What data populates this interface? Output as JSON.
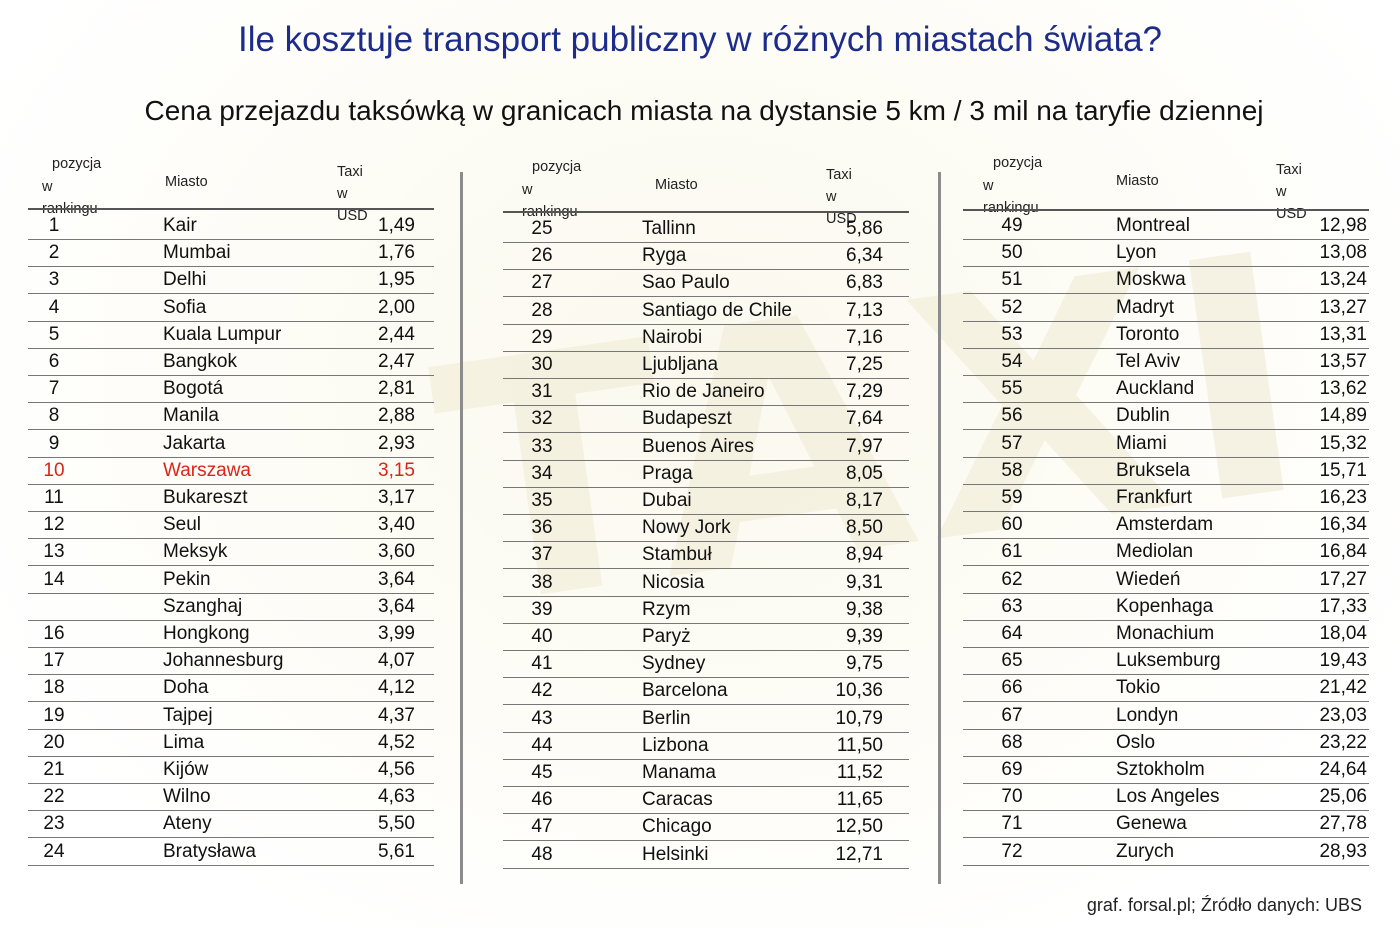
{
  "title": "Ile kosztuje transport publiczny w różnych miastach świata?",
  "subtitle": "Cena przejazdu taksówką w granicach miasta na dystansie 5 km / 3 mil na taryfie dziennej",
  "footer": "graf. forsal.pl; Źródło danych: UBS",
  "watermark": "TAXI",
  "headers": {
    "position_line1": "pozycja",
    "position_line2": "w rankingu",
    "city": "Miasto",
    "value": "Taxi w USD"
  },
  "colors": {
    "title": "#1d2c8a",
    "highlight": "#d8261a"
  },
  "chart_data": {
    "type": "table",
    "title": "Ile kosztuje transport publiczny w różnych miastach świata?",
    "subtitle": "Cena przejazdu taksówką w granicach miasta na dystansie 5 km / 3 mil na taryfie dziennej",
    "columns": [
      "pozycja w rankingu",
      "Miasto",
      "Taxi w USD"
    ],
    "highlighted_city": "Warszawa",
    "rows": [
      {
        "pos": "1",
        "city": "Kair",
        "value": "1,49"
      },
      {
        "pos": "2",
        "city": "Mumbai",
        "value": "1,76"
      },
      {
        "pos": "3",
        "city": "Delhi",
        "value": "1,95"
      },
      {
        "pos": "4",
        "city": "Sofia",
        "value": "2,00"
      },
      {
        "pos": "5",
        "city": "Kuala Lumpur",
        "value": "2,44"
      },
      {
        "pos": "6",
        "city": "Bangkok",
        "value": "2,47"
      },
      {
        "pos": "7",
        "city": "Bogotá",
        "value": "2,81"
      },
      {
        "pos": "8",
        "city": "Manila",
        "value": "2,88"
      },
      {
        "pos": "9",
        "city": "Jakarta",
        "value": "2,93"
      },
      {
        "pos": "10",
        "city": "Warszawa",
        "value": "3,15"
      },
      {
        "pos": "11",
        "city": "Bukareszt",
        "value": "3,17"
      },
      {
        "pos": "12",
        "city": "Seul",
        "value": "3,40"
      },
      {
        "pos": "13",
        "city": "Meksyk",
        "value": "3,60"
      },
      {
        "pos": "14",
        "city": "Pekin",
        "value": "3,64"
      },
      {
        "pos": "",
        "city": "Szanghaj",
        "value": "3,64"
      },
      {
        "pos": "16",
        "city": "Hongkong",
        "value": "3,99"
      },
      {
        "pos": "17",
        "city": "Johannesburg",
        "value": "4,07"
      },
      {
        "pos": "18",
        "city": "Doha",
        "value": "4,12"
      },
      {
        "pos": "19",
        "city": "Tajpej",
        "value": "4,37"
      },
      {
        "pos": "20",
        "city": "Lima",
        "value": "4,52"
      },
      {
        "pos": "21",
        "city": "Kijów",
        "value": "4,56"
      },
      {
        "pos": "22",
        "city": "Wilno",
        "value": "4,63"
      },
      {
        "pos": "23",
        "city": "Ateny",
        "value": "5,50"
      },
      {
        "pos": "24",
        "city": "Bratysława",
        "value": "5,61"
      },
      {
        "pos": "25",
        "city": "Tallinn",
        "value": "5,86"
      },
      {
        "pos": "26",
        "city": "Ryga",
        "value": "6,34"
      },
      {
        "pos": "27",
        "city": "Sao Paulo",
        "value": "6,83"
      },
      {
        "pos": "28",
        "city": "Santiago de Chile",
        "value": "7,13"
      },
      {
        "pos": "29",
        "city": "Nairobi",
        "value": "7,16"
      },
      {
        "pos": "30",
        "city": "Ljubljana",
        "value": "7,25"
      },
      {
        "pos": "31",
        "city": "Rio de Janeiro",
        "value": "7,29"
      },
      {
        "pos": "32",
        "city": "Budapeszt",
        "value": "7,64"
      },
      {
        "pos": "33",
        "city": "Buenos Aires",
        "value": "7,97"
      },
      {
        "pos": "34",
        "city": "Praga",
        "value": "8,05"
      },
      {
        "pos": "35",
        "city": "Dubai",
        "value": "8,17"
      },
      {
        "pos": "36",
        "city": "Nowy Jork",
        "value": "8,50"
      },
      {
        "pos": "37",
        "city": "Stambuł",
        "value": "8,94"
      },
      {
        "pos": "38",
        "city": "Nicosia",
        "value": "9,31"
      },
      {
        "pos": "39",
        "city": "Rzym",
        "value": "9,38"
      },
      {
        "pos": "40",
        "city": "Paryż",
        "value": "9,39"
      },
      {
        "pos": "41",
        "city": "Sydney",
        "value": "9,75"
      },
      {
        "pos": "42",
        "city": "Barcelona",
        "value": "10,36"
      },
      {
        "pos": "43",
        "city": "Berlin",
        "value": "10,79"
      },
      {
        "pos": "44",
        "city": "Lizbona",
        "value": "11,50"
      },
      {
        "pos": "45",
        "city": "Manama",
        "value": "11,52"
      },
      {
        "pos": "46",
        "city": "Caracas",
        "value": "11,65"
      },
      {
        "pos": "47",
        "city": "Chicago",
        "value": "12,50"
      },
      {
        "pos": "48",
        "city": "Helsinki",
        "value": "12,71"
      },
      {
        "pos": "49",
        "city": "Montreal",
        "value": "12,98"
      },
      {
        "pos": "50",
        "city": "Lyon",
        "value": "13,08"
      },
      {
        "pos": "51",
        "city": "Moskwa",
        "value": "13,24"
      },
      {
        "pos": "52",
        "city": "Madryt",
        "value": "13,27"
      },
      {
        "pos": "53",
        "city": "Toronto",
        "value": "13,31"
      },
      {
        "pos": "54",
        "city": "Tel Aviv",
        "value": "13,57"
      },
      {
        "pos": "55",
        "city": "Auckland",
        "value": "13,62"
      },
      {
        "pos": "56",
        "city": "Dublin",
        "value": "14,89"
      },
      {
        "pos": "57",
        "city": "Miami",
        "value": "15,32"
      },
      {
        "pos": "58",
        "city": "Bruksela",
        "value": "15,71"
      },
      {
        "pos": "59",
        "city": "Frankfurt",
        "value": "16,23"
      },
      {
        "pos": "60",
        "city": "Amsterdam",
        "value": "16,34"
      },
      {
        "pos": "61",
        "city": "Mediolan",
        "value": "16,84"
      },
      {
        "pos": "62",
        "city": "Wiedeń",
        "value": "17,27"
      },
      {
        "pos": "63",
        "city": "Kopenhaga",
        "value": "17,33"
      },
      {
        "pos": "64",
        "city": "Monachium",
        "value": "18,04"
      },
      {
        "pos": "65",
        "city": "Luksemburg",
        "value": "19,43"
      },
      {
        "pos": "66",
        "city": "Tokio",
        "value": "21,42"
      },
      {
        "pos": "67",
        "city": "Londyn",
        "value": "23,03"
      },
      {
        "pos": "68",
        "city": "Oslo",
        "value": "23,22"
      },
      {
        "pos": "69",
        "city": "Sztokholm",
        "value": "24,64"
      },
      {
        "pos": "70",
        "city": "Los Angeles",
        "value": "25,06"
      },
      {
        "pos": "71",
        "city": "Genewa",
        "value": "27,78"
      },
      {
        "pos": "72",
        "city": "Zurych",
        "value": "28,93"
      }
    ]
  }
}
